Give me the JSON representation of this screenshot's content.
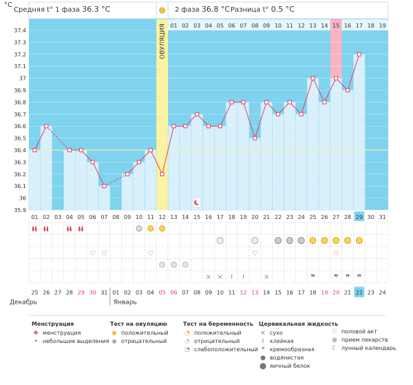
{
  "chart_data": {
    "type": "line",
    "y_unit": "°C",
    "header": {
      "phase1_label": "Средняя t° 1 фаза",
      "phase1_value": "36.3 °C",
      "phase2_label": "2 фаза",
      "phase2_value": "36.8 °C",
      "diff_label": "Разница t°",
      "diff_value": "0.5 °C"
    },
    "ovulation_label": "ОВУЛЯЦИЯ",
    "ovulation_day": 12,
    "y_ticks": [
      "35.9",
      "36",
      "36.1",
      "36.2",
      "36.3",
      "36.4",
      "36.5",
      "36.6",
      "36.7",
      "36.8",
      "36.9",
      "37",
      "37.1",
      "37.2",
      "37.3",
      "37.4"
    ],
    "ylim": [
      35.9,
      37.4
    ],
    "coverline": 36.4,
    "phase2_day_labels": [
      "01",
      "02",
      "03",
      "04",
      "05",
      "06",
      "07",
      "08",
      "09",
      "10",
      "11",
      "12",
      "13",
      "14",
      "15",
      "16",
      "17",
      "18",
      "19"
    ],
    "cycle_days": [
      "01",
      "02",
      "03",
      "04",
      "05",
      "06",
      "07",
      "08",
      "09",
      "10",
      "11",
      "12",
      "13",
      "14",
      "15",
      "16",
      "17",
      "18",
      "19",
      "20",
      "21",
      "22",
      "23",
      "24",
      "25",
      "26",
      "27",
      "28",
      "29",
      "30",
      "31"
    ],
    "current_cycle_day": "29",
    "highlight_phase2_day": "15",
    "temperatures": [
      36.4,
      36.6,
      null,
      36.4,
      36.4,
      36.3,
      36.1,
      null,
      36.2,
      36.3,
      36.4,
      36.2,
      36.6,
      36.6,
      36.7,
      36.6,
      36.6,
      36.8,
      36.8,
      36.5,
      36.8,
      36.7,
      36.8,
      36.7,
      37.0,
      36.8,
      37.0,
      36.9,
      37.2,
      null,
      null
    ],
    "dates": [
      "25",
      "26",
      "27",
      "28",
      "29",
      "30",
      "31",
      "01",
      "02",
      "03",
      "04",
      "05",
      "06",
      "07",
      "08",
      "09",
      "10",
      "11",
      "12",
      "13",
      "14",
      "15",
      "16",
      "17",
      "18",
      "19",
      "20",
      "21",
      "22",
      "23",
      "24"
    ],
    "red_dates": [
      "29",
      "30",
      "05",
      "06",
      "12",
      "13",
      "19",
      "20"
    ],
    "current_date": "22",
    "month_labels": {
      "december": "Декабрь",
      "january": "Январь"
    },
    "symbols": {
      "menstruation": [
        1,
        2,
        4,
        5
      ],
      "light_spotting": [],
      "ovulation_test_positive": [
        11,
        12
      ],
      "ovulation_test_negative": [
        10
      ],
      "pregnancy_positive": [
        25,
        26,
        27,
        28,
        29
      ],
      "pregnancy_negative": [
        17,
        20
      ],
      "pregnancy_weak": [
        22,
        23,
        24
      ],
      "intercourse": [
        6,
        7,
        11,
        20,
        27
      ],
      "medication": [
        12,
        13,
        14
      ],
      "cm_dry": [
        16,
        17,
        21
      ],
      "cm_sticky": [
        18,
        19
      ],
      "cm_creamy": [
        25,
        27,
        28,
        29
      ],
      "cm_watery": [],
      "cm_eggwhite": [],
      "lunar": [
        15
      ]
    },
    "legend": {
      "menstruation_title": "Менструация",
      "menstruation_items": [
        "менструация",
        "небольшие выделения"
      ],
      "ovulation_title": "Тест на овуляцию",
      "ovulation_items": [
        "положительный",
        "отрицательный"
      ],
      "pregnancy_title": "Тест на беременность",
      "pregnancy_items": [
        "положительный",
        "отрицательный",
        "слабоположительный"
      ],
      "cervical_title": "Цервикальная жидкость",
      "cervical_items": [
        "сухо",
        "клейкая",
        "кремообразная",
        "водянистая",
        "яичный белок"
      ],
      "other_items": [
        "половой акт",
        "прием лекарств",
        "лунный календарь"
      ]
    },
    "colors": {
      "blue": "#7fd3ef",
      "bar": "#d8f0fb",
      "bar_edge": "#a8d8ee",
      "line": "#e0405a",
      "ovulation": "#fbf3a0",
      "highlight": "#f7b3c4",
      "cover": "#f0f0a0",
      "date_red": "#e0405a"
    }
  }
}
